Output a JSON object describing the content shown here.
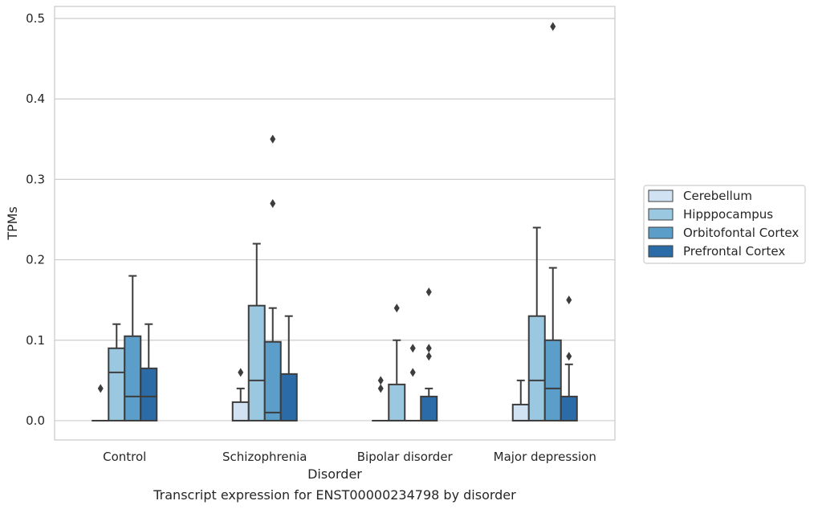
{
  "chart_data": {
    "type": "box",
    "title": "Transcript expression for ENST00000234798 by disorder",
    "xlabel": "Disorder",
    "ylabel": "TPMs",
    "ylim": [
      -0.024,
      0.515
    ],
    "yticks": [
      "0.0",
      "0.1",
      "0.2",
      "0.3",
      "0.4",
      "0.5"
    ],
    "grid": "horizontal",
    "legend_position": "right",
    "categories": [
      "Control",
      "Schizophrenia",
      "Bipolar disorder",
      "Major depression"
    ],
    "series": [
      {
        "name": "Cerebellum",
        "color": "#d1e2f2",
        "boxes": [
          {
            "whislo": 0,
            "q1": 0,
            "med": 0,
            "q3": 0,
            "whishi": 0,
            "fliers": [
              0.04
            ]
          },
          {
            "whislo": 0,
            "q1": 0,
            "med": 0,
            "q3": 0.023,
            "whishi": 0.04,
            "fliers": [
              0.06
            ]
          },
          {
            "whislo": 0,
            "q1": 0,
            "med": 0,
            "q3": 0,
            "whishi": 0,
            "fliers": [
              0.04,
              0.05
            ]
          },
          {
            "whislo": 0,
            "q1": 0,
            "med": 0,
            "q3": 0.02,
            "whishi": 0.05,
            "fliers": []
          }
        ]
      },
      {
        "name": "Hipppocampus",
        "color": "#9ac8e0",
        "boxes": [
          {
            "whislo": 0,
            "q1": 0,
            "med": 0.06,
            "q3": 0.09,
            "whishi": 0.12,
            "fliers": []
          },
          {
            "whislo": 0,
            "q1": 0,
            "med": 0.05,
            "q3": 0.143,
            "whishi": 0.22,
            "fliers": []
          },
          {
            "whislo": 0,
            "q1": 0,
            "med": 0,
            "q3": 0.045,
            "whishi": 0.1,
            "fliers": [
              0.14
            ]
          },
          {
            "whislo": 0,
            "q1": 0,
            "med": 0.05,
            "q3": 0.13,
            "whishi": 0.24,
            "fliers": []
          }
        ]
      },
      {
        "name": "Orbitofontal Cortex",
        "color": "#5a9ec9",
        "boxes": [
          {
            "whislo": 0,
            "q1": 0,
            "med": 0.03,
            "q3": 0.105,
            "whishi": 0.18,
            "fliers": []
          },
          {
            "whislo": 0,
            "q1": 0,
            "med": 0.01,
            "q3": 0.098,
            "whishi": 0.14,
            "fliers": [
              0.27,
              0.35
            ]
          },
          {
            "whislo": 0,
            "q1": 0,
            "med": 0,
            "q3": 0,
            "whishi": 0,
            "fliers": [
              0.06,
              0.09
            ]
          },
          {
            "whislo": 0,
            "q1": 0,
            "med": 0.04,
            "q3": 0.1,
            "whishi": 0.19,
            "fliers": [
              0.49
            ]
          }
        ]
      },
      {
        "name": "Prefrontal Cortex",
        "color": "#2b6ca8",
        "boxes": [
          {
            "whislo": 0,
            "q1": 0,
            "med": 0.03,
            "q3": 0.065,
            "whishi": 0.12,
            "fliers": []
          },
          {
            "whislo": 0,
            "q1": 0,
            "med": 0,
            "q3": 0.058,
            "whishi": 0.13,
            "fliers": []
          },
          {
            "whislo": 0,
            "q1": 0,
            "med": 0,
            "q3": 0.03,
            "whishi": 0.04,
            "fliers": [
              0.08,
              0.09,
              0.16
            ]
          },
          {
            "whislo": 0,
            "q1": 0,
            "med": 0,
            "q3": 0.03,
            "whishi": 0.07,
            "fliers": [
              0.08,
              0.15
            ]
          }
        ]
      }
    ]
  }
}
